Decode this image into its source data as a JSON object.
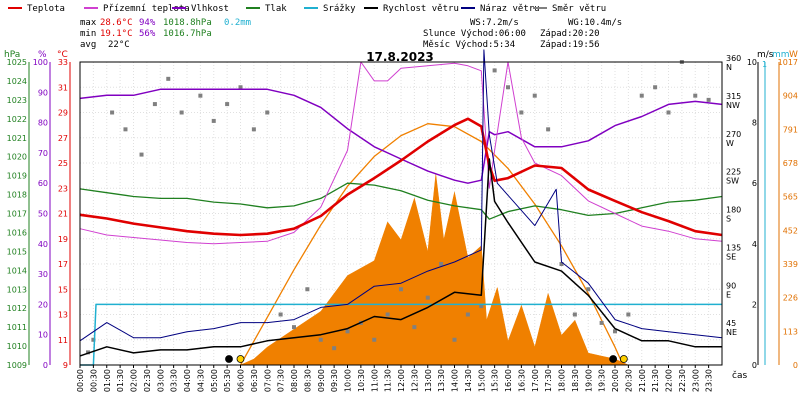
{
  "chart_data": {
    "type": "line",
    "title": "17.8.2023",
    "legend": [
      {
        "label": "Teplota",
        "color": "#e00000"
      },
      {
        "label": "Přízemní teplota",
        "color": "#d040d0"
      },
      {
        "label": "Vlhkost",
        "color": "#8000c0"
      },
      {
        "label": "Tlak",
        "color": "#208020"
      },
      {
        "label": "Srážky",
        "color": "#20b0d0"
      },
      {
        "label": "Rychlost větru",
        "color": "#000000"
      },
      {
        "label": "Náraz větru",
        "color": "#000080"
      },
      {
        "label": "Směr větru",
        "color": "#808080"
      }
    ],
    "stats": {
      "max_label": "max",
      "max_temp": "28.6°C",
      "max_hum": "94%",
      "max_press": "1018.8hPa",
      "rain": "0.2mm",
      "min_label": "min",
      "min_temp": "19.1°C",
      "min_hum": "56%",
      "min_press": "1016.7hPa",
      "avg_label": "avg",
      "avg_temp": "22°C",
      "ws": "WS:7.2m/s",
      "wg": "WG:10.4m/s",
      "sun": "Slunce Východ:06:00",
      "sun_set": "Západ:20:20",
      "moon": "Měsíc  Východ:5:34",
      "moon_set": "Západ:19:56"
    },
    "axes": {
      "hpa_title": "hPa",
      "pct_title": "%",
      "c_title": "°C",
      "ms_title": "m/s",
      "mm_title": "mm",
      "wm_title": "W",
      "xlabel": "čas",
      "hpa_ticks": [
        "1025",
        "1024",
        "1023",
        "1022",
        "1021",
        "1020",
        "1019",
        "1018",
        "1017",
        "1016",
        "1015",
        "1014",
        "1013",
        "1012",
        "1011",
        "1010",
        "1009"
      ],
      "pct_ticks": [
        "100",
        "90",
        "80",
        "70",
        "60",
        "50",
        "40",
        "30",
        "20",
        "10",
        "0"
      ],
      "c_ticks": [
        "33",
        "31",
        "29",
        "27",
        "25",
        "23",
        "21",
        "19",
        "17",
        "15",
        "13",
        "11",
        "9"
      ],
      "dir_ticks": [
        {
          "deg": 360,
          "label": "360",
          "name": "N"
        },
        {
          "deg": 315,
          "label": "315",
          "name": "NW"
        },
        {
          "deg": 270,
          "label": "270",
          "name": "W"
        },
        {
          "deg": 225,
          "label": "225",
          "name": "SW"
        },
        {
          "deg": 180,
          "label": "180",
          "name": "S"
        },
        {
          "deg": 135,
          "label": "135",
          "name": "SE"
        },
        {
          "deg": 90,
          "label": "90",
          "name": "E"
        },
        {
          "deg": 45,
          "label": "45",
          "name": "NE"
        }
      ],
      "ms_ticks": [
        "10",
        "8",
        "6",
        "4",
        "2",
        "0"
      ],
      "wm_ticks": [
        "1017",
        "904",
        "791",
        "678",
        "565",
        "452",
        "339",
        "226",
        "113",
        "0"
      ],
      "mm_top": "1",
      "time_ticks": [
        "00:00",
        "00:30",
        "01:00",
        "01:30",
        "02:00",
        "02:30",
        "03:00",
        "03:30",
        "04:00",
        "04:30",
        "05:00",
        "05:30",
        "06:00",
        "06:30",
        "07:00",
        "07:30",
        "08:00",
        "08:30",
        "09:00",
        "09:30",
        "10:00",
        "10:30",
        "11:00",
        "11:30",
        "12:00",
        "12:30",
        "13:00",
        "13:30",
        "14:00",
        "14:30",
        "15:00",
        "15:30",
        "16:00",
        "16:30",
        "17:00",
        "17:30",
        "18:00",
        "18:30",
        "19:00",
        "19:30",
        "20:00",
        "20:30",
        "21:00",
        "21:30",
        "22:00",
        "22:30",
        "23:00",
        "23:30"
      ]
    },
    "series": [
      {
        "name": "Teplota",
        "unit": "°C",
        "x": [
          0,
          1,
          2,
          3,
          4,
          5,
          6,
          7,
          8,
          9,
          10,
          11,
          12,
          13,
          14,
          14.5,
          15,
          15.3,
          15.5,
          16,
          17,
          18,
          19,
          20,
          21,
          22,
          23,
          24
        ],
        "values": [
          20.9,
          20.6,
          20.2,
          19.9,
          19.6,
          19.4,
          19.3,
          19.4,
          19.8,
          20.8,
          22.5,
          23.8,
          25.2,
          26.7,
          28.0,
          28.5,
          27.9,
          24.8,
          23.6,
          23.8,
          24.8,
          24.6,
          22.9,
          22.0,
          21.1,
          20.4,
          19.6,
          19.3
        ]
      },
      {
        "name": "Přízemní teplota",
        "unit": "°C",
        "x": [
          0,
          1,
          2,
          3,
          4,
          5,
          6,
          7,
          8,
          9,
          10,
          10.5,
          11,
          11.5,
          12,
          13,
          14,
          14.5,
          15,
          15.3,
          15.5,
          16,
          16.5,
          17,
          18,
          19,
          20,
          21,
          22,
          23,
          24
        ],
        "values": [
          19.8,
          19.3,
          19.1,
          18.9,
          18.7,
          18.6,
          18.7,
          18.8,
          19.5,
          21.5,
          26.0,
          33.0,
          31.5,
          31.5,
          32.5,
          32.7,
          32.9,
          32.7,
          32.3,
          23.0,
          26.0,
          33.0,
          27.0,
          25.0,
          24.0,
          22.0,
          21.0,
          20.0,
          19.6,
          19.0,
          18.8
        ]
      },
      {
        "name": "Vlhkost",
        "unit": "%",
        "x": [
          0,
          1,
          2,
          3,
          4,
          5,
          6,
          7,
          8,
          9,
          10,
          11,
          12,
          13,
          14,
          14.5,
          15,
          15.3,
          15.5,
          16,
          17,
          18,
          19,
          20,
          21,
          22,
          23,
          24
        ],
        "values": [
          88,
          89,
          89,
          91,
          91,
          91,
          91,
          91,
          89,
          85,
          78,
          72,
          68,
          64,
          61,
          60,
          61,
          77,
          76,
          77,
          72,
          72,
          74,
          79,
          82,
          86,
          87,
          86
        ]
      },
      {
        "name": "Tlak",
        "unit": "hPa",
        "x": [
          0,
          1,
          2,
          3,
          4,
          5,
          6,
          7,
          8,
          9,
          10,
          11,
          12,
          13,
          14,
          15,
          15.3,
          16,
          17,
          18,
          19,
          20,
          21,
          22,
          23,
          24
        ],
        "values": [
          1018.3,
          1018.1,
          1017.9,
          1017.8,
          1017.8,
          1017.6,
          1017.5,
          1017.3,
          1017.4,
          1017.8,
          1018.6,
          1018.5,
          1018.2,
          1017.7,
          1017.4,
          1017.2,
          1016.7,
          1017.1,
          1017.4,
          1017.2,
          1016.9,
          1017.0,
          1017.3,
          1017.6,
          1017.7,
          1017.9
        ]
      },
      {
        "name": "Srážky",
        "unit": "mm",
        "x": [
          0,
          0.5,
          0.6,
          24
        ],
        "values": [
          0.0,
          0.0,
          0.2,
          0.2
        ]
      },
      {
        "name": "Rychlost větru",
        "unit": "m/s",
        "x": [
          0,
          1,
          2,
          3,
          4,
          5,
          6,
          7,
          8,
          9,
          10,
          11,
          12,
          13,
          14,
          15,
          15.3,
          15.5,
          16,
          17,
          18,
          19,
          20,
          21,
          22,
          23,
          24
        ],
        "values": [
          0.3,
          0.6,
          0.4,
          0.5,
          0.5,
          0.6,
          0.6,
          0.8,
          0.9,
          1.0,
          1.2,
          1.6,
          1.5,
          1.9,
          2.4,
          2.3,
          6.8,
          5.4,
          4.7,
          3.4,
          3.1,
          2.3,
          1.2,
          0.8,
          0.8,
          0.6,
          0.6
        ]
      },
      {
        "name": "Náraz větru",
        "unit": "m/s",
        "x": [
          0,
          1,
          2,
          3,
          4,
          5,
          6,
          7,
          8,
          9,
          10,
          11,
          12,
          13,
          14,
          15,
          15.1,
          15.3,
          15.6,
          16,
          17,
          17.8,
          18,
          19,
          20,
          21,
          22,
          23,
          24
        ],
        "values": [
          0.8,
          1.4,
          0.9,
          0.9,
          1.1,
          1.2,
          1.4,
          1.4,
          1.5,
          1.9,
          2.0,
          2.6,
          2.7,
          3.1,
          3.4,
          3.8,
          10.4,
          7.6,
          6.0,
          5.6,
          4.6,
          5.8,
          3.4,
          2.7,
          1.5,
          1.2,
          1.1,
          1.0,
          0.9
        ]
      },
      {
        "name": "Sluneční záření",
        "unit": "W",
        "x": [
          0,
          6,
          6.5,
          7,
          8,
          9,
          10,
          11,
          11.5,
          12,
          12.5,
          13,
          13.3,
          13.6,
          14,
          14.5,
          15,
          15.2,
          15.6,
          16,
          16.5,
          17,
          17.5,
          18,
          18.5,
          19,
          19.5,
          20,
          20.5,
          24
        ],
        "values": [
          0,
          0,
          20,
          60,
          120,
          180,
          300,
          350,
          480,
          420,
          560,
          380,
          640,
          420,
          580,
          360,
          400,
          150,
          260,
          80,
          200,
          60,
          240,
          100,
          150,
          40,
          30,
          20,
          0,
          0
        ]
      },
      {
        "name": "Sluneční dráha",
        "unit": "W",
        "x": [
          6,
          7,
          8,
          9,
          10,
          11,
          12,
          13,
          14,
          15,
          16,
          17,
          18,
          19,
          20,
          20.3
        ],
        "values": [
          0,
          160,
          320,
          470,
          600,
          700,
          770,
          810,
          800,
          750,
          660,
          540,
          400,
          240,
          60,
          0
        ]
      },
      {
        "name": "Směr větru",
        "unit": "°",
        "x": [
          0.3,
          0.5,
          1.2,
          1.7,
          2.3,
          2.8,
          3.3,
          3.8,
          4.5,
          5.0,
          5.5,
          6.0,
          6.5,
          7.0,
          7.5,
          8.0,
          8.5,
          9.0,
          9.5,
          10.0,
          10.5,
          11.0,
          11.5,
          12.0,
          12.5,
          13.0,
          13.5,
          14.0,
          14.5,
          15.0,
          15.5,
          16.0,
          16.5,
          17.0,
          17.5,
          18.0,
          18.5,
          19.0,
          19.5,
          20.0,
          20.5,
          21.0,
          21.5,
          22.0,
          22.5,
          23.0,
          23.5
        ],
        "values": [
          15,
          30,
          300,
          280,
          250,
          310,
          340,
          300,
          320,
          290,
          310,
          330,
          280,
          300,
          60,
          45,
          90,
          30,
          20,
          40,
          50,
          30,
          60,
          90,
          45,
          80,
          120,
          30,
          60,
          70,
          350,
          330,
          300,
          320,
          280,
          120,
          60,
          90,
          50,
          40,
          60,
          320,
          330,
          300,
          360,
          320,
          315
        ]
      }
    ],
    "ranges": {
      "temp_c": [
        9,
        33
      ],
      "humidity_pct": [
        0,
        100
      ],
      "pressure_hpa": [
        1009,
        1025
      ],
      "wind_ms": [
        0,
        10
      ],
      "wind_dir_deg": [
        0,
        360
      ],
      "solar_w": [
        0,
        1017
      ],
      "rain_mm": [
        0,
        1
      ],
      "time_h": [
        0,
        24
      ]
    },
    "grid": true,
    "legend_placement": "top"
  }
}
